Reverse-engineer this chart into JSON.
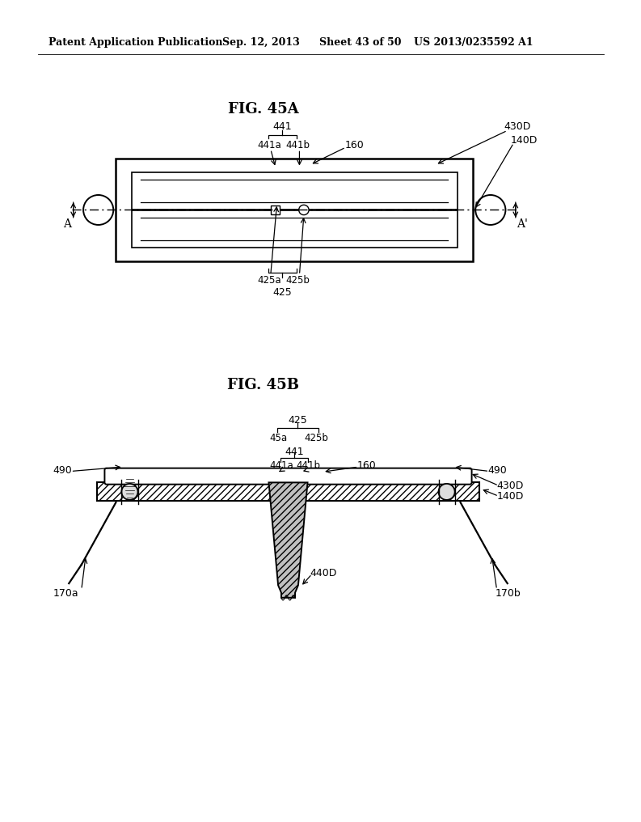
{
  "bg_color": "#ffffff",
  "line_color": "#000000",
  "header_text": "Patent Application Publication",
  "header_date": "Sep. 12, 2013",
  "header_sheet": "Sheet 43 of 50",
  "header_patent": "US 2013/0235592 A1",
  "fig_a_title": "FIG. 45A",
  "fig_b_title": "FIG. 45B"
}
